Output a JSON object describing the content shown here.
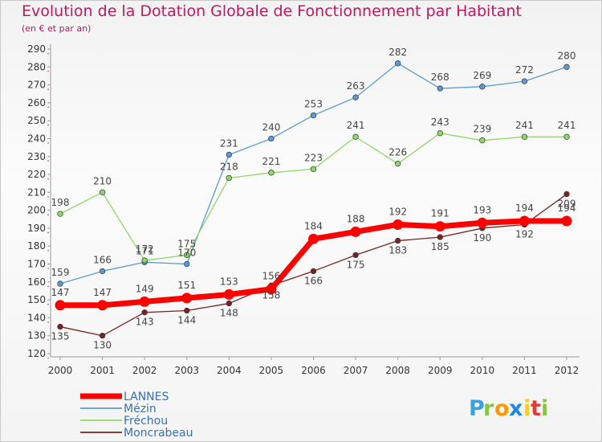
{
  "chart_data": {
    "type": "line",
    "title": "Evolution de la Dotation Globale de Fonctionnement par Habitant",
    "subtitle": "(en € et par an)",
    "x": [
      "2000",
      "2001",
      "2002",
      "2003",
      "2004",
      "2005",
      "2006",
      "2007",
      "2008",
      "2009",
      "2010",
      "2011",
      "2012"
    ],
    "ylim": [
      120,
      290
    ],
    "yticks": [
      120,
      130,
      140,
      150,
      160,
      170,
      180,
      190,
      200,
      210,
      220,
      230,
      240,
      250,
      260,
      270,
      280,
      290
    ],
    "grid": false,
    "legend_position": "bottom-left",
    "series": [
      {
        "name": "LANNES",
        "color": "#ff0000",
        "values": [
          147,
          147,
          149,
          151,
          153,
          156,
          184,
          188,
          192,
          191,
          193,
          194,
          194
        ]
      },
      {
        "name": "Mézin",
        "color": "#5b9bd5",
        "values": [
          159,
          166,
          171,
          170,
          231,
          240,
          253,
          263,
          282,
          268,
          269,
          272,
          280
        ]
      },
      {
        "name": "Fréchou",
        "color": "#8ed86a",
        "values": [
          198,
          210,
          172,
          175,
          218,
          221,
          223,
          241,
          226,
          243,
          239,
          241,
          241
        ]
      },
      {
        "name": "Moncrabeau",
        "color": "#7b2222",
        "values": [
          135,
          130,
          143,
          144,
          148,
          158,
          166,
          175,
          183,
          185,
          190,
          192,
          209
        ]
      }
    ]
  },
  "logo": {
    "letters": [
      "P",
      "r",
      "o",
      "x",
      "i",
      "t",
      "i"
    ],
    "colors": [
      "#3aa0e0",
      "#8bc34a",
      "#ff9800",
      "#1e88e5",
      "#ffca28",
      "#e53935",
      "#8bc34a"
    ]
  }
}
